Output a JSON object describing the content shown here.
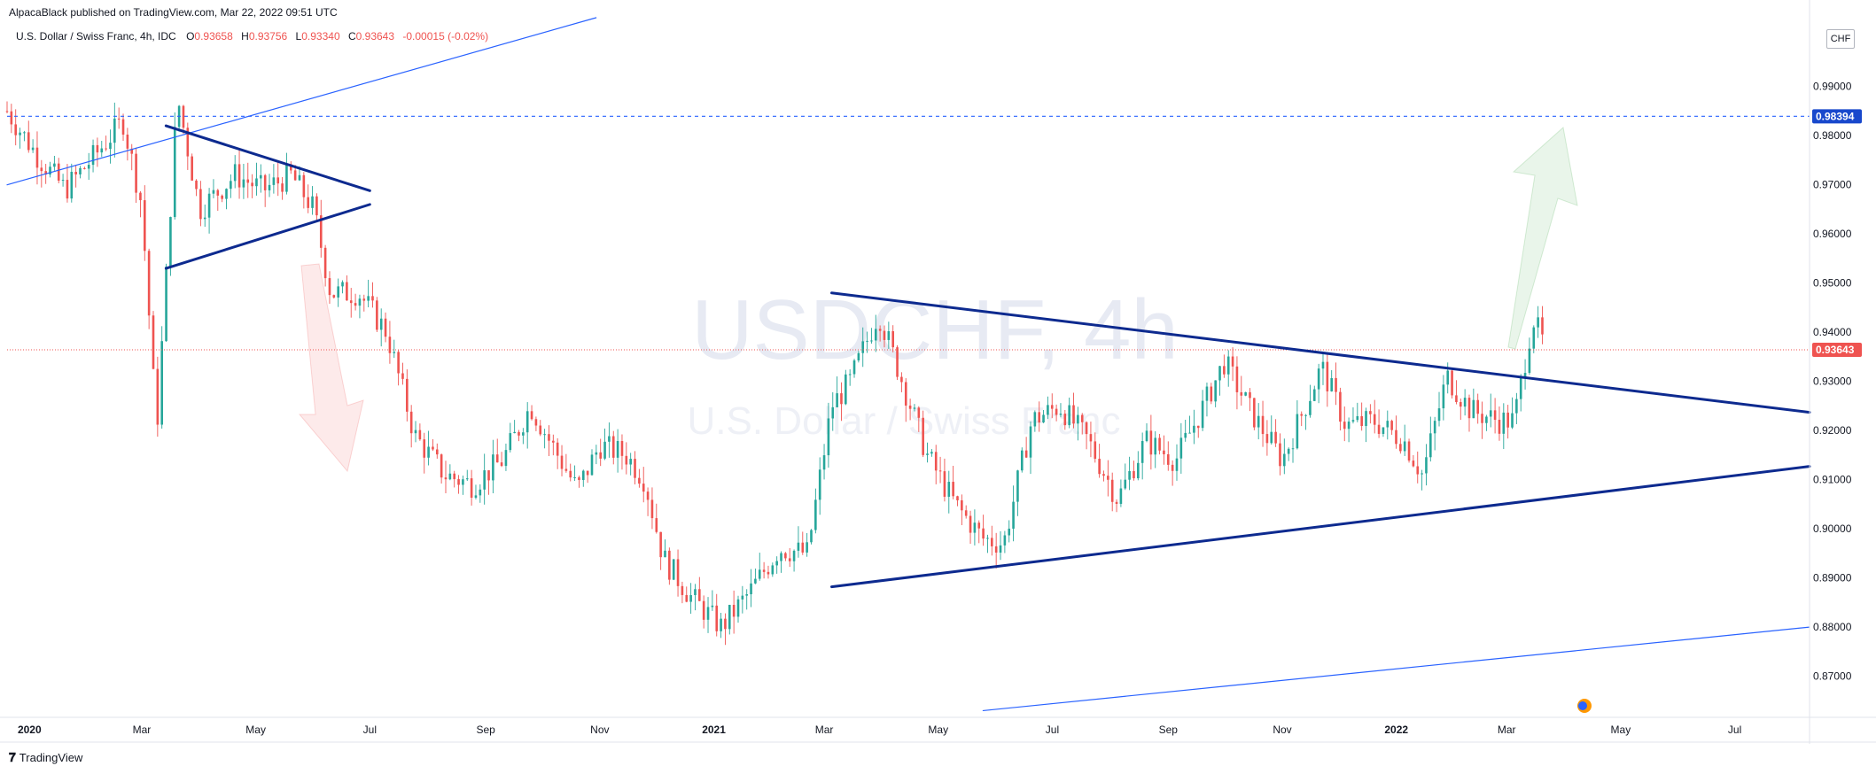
{
  "header": {
    "published": "AlpacaBlack published on TradingView.com, Mar 22, 2022 09:51 UTC"
  },
  "legend": {
    "symbol": "U.S. Dollar / Swiss Franc, 4h, IDC",
    "open_label": "O",
    "open": "0.93658",
    "high_label": "H",
    "high": "0.93756",
    "low_label": "L",
    "low": "0.93340",
    "close_label": "C",
    "close": "0.93643",
    "change": "-0.00015 (-0.02%)"
  },
  "currency_badge": "CHF",
  "watermark": {
    "ticker": "USDCHF, 4h",
    "name": "U.S. Dollar / Swiss Franc"
  },
  "footer": {
    "brand": "TradingView"
  },
  "colors": {
    "up": "#26a69a",
    "down": "#ef5350",
    "trend": "#0d2a8f",
    "thin_trend": "#2962ff",
    "target": "#2962ff",
    "price": "#ef5350"
  },
  "chart_data": {
    "type": "candlestick",
    "symbol": "USDCHF",
    "interval": "4h",
    "y_ticks": [
      "0.99000",
      "0.98000",
      "0.97000",
      "0.96000",
      "0.95000",
      "0.94000",
      "0.93000",
      "0.92000",
      "0.91000",
      "0.90000",
      "0.89000",
      "0.88000",
      "0.87000"
    ],
    "y_range": [
      0.862,
      1.004
    ],
    "x_ticks": [
      {
        "label": "2020",
        "year": true
      },
      {
        "label": "Mar",
        "year": false
      },
      {
        "label": "May",
        "year": false
      },
      {
        "label": "Jul",
        "year": false
      },
      {
        "label": "Sep",
        "year": false
      },
      {
        "label": "Nov",
        "year": false
      },
      {
        "label": "2021",
        "year": true
      },
      {
        "label": "Mar",
        "year": false
      },
      {
        "label": "May",
        "year": false
      },
      {
        "label": "Jul",
        "year": false
      },
      {
        "label": "Sep",
        "year": false
      },
      {
        "label": "Nov",
        "year": false
      },
      {
        "label": "2022",
        "year": true
      },
      {
        "label": "Mar",
        "year": false
      },
      {
        "label": "May",
        "year": false
      },
      {
        "label": "Jul",
        "year": false
      }
    ],
    "x_range": [
      "2019-12-20",
      "2022-08-10"
    ],
    "tick_dates": [
      "2020-01-01",
      "2020-03-01",
      "2020-05-01",
      "2020-07-01",
      "2020-09-01",
      "2020-11-01",
      "2021-01-01",
      "2021-03-01",
      "2021-05-01",
      "2021-07-01",
      "2021-09-01",
      "2021-11-01",
      "2022-01-01",
      "2022-03-01",
      "2022-05-01",
      "2022-07-01"
    ],
    "price_path": [
      [
        "2019-12-20",
        0.985
      ],
      [
        "2020-01-05",
        0.976
      ],
      [
        "2020-01-20",
        0.969
      ],
      [
        "2020-02-05",
        0.976
      ],
      [
        "2020-02-20",
        0.983
      ],
      [
        "2020-03-01",
        0.966
      ],
      [
        "2020-03-09",
        0.92
      ],
      [
        "2020-03-20",
        0.988
      ],
      [
        "2020-04-01",
        0.965
      ],
      [
        "2020-04-20",
        0.972
      ],
      [
        "2020-05-05",
        0.969
      ],
      [
        "2020-05-20",
        0.972
      ],
      [
        "2020-06-01",
        0.965
      ],
      [
        "2020-06-10",
        0.948
      ],
      [
        "2020-06-25",
        0.948
      ],
      [
        "2020-07-10",
        0.94
      ],
      [
        "2020-07-25",
        0.919
      ],
      [
        "2020-08-10",
        0.911
      ],
      [
        "2020-08-25",
        0.909
      ],
      [
        "2020-09-10",
        0.914
      ],
      [
        "2020-09-25",
        0.925
      ],
      [
        "2020-10-05",
        0.918
      ],
      [
        "2020-10-20",
        0.908
      ],
      [
        "2020-11-01",
        0.917
      ],
      [
        "2020-11-15",
        0.915
      ],
      [
        "2020-11-25",
        0.91
      ],
      [
        "2020-12-05",
        0.894
      ],
      [
        "2020-12-20",
        0.886
      ],
      [
        "2021-01-05",
        0.88
      ],
      [
        "2021-01-20",
        0.887
      ],
      [
        "2021-02-05",
        0.896
      ],
      [
        "2021-02-20",
        0.895
      ],
      [
        "2021-03-05",
        0.925
      ],
      [
        "2021-03-15",
        0.93
      ],
      [
        "2021-03-30",
        0.944
      ],
      [
        "2021-04-10",
        0.932
      ],
      [
        "2021-04-25",
        0.915
      ],
      [
        "2021-05-10",
        0.905
      ],
      [
        "2021-05-25",
        0.898
      ],
      [
        "2021-06-05",
        0.897
      ],
      [
        "2021-06-20",
        0.922
      ],
      [
        "2021-07-05",
        0.925
      ],
      [
        "2021-07-20",
        0.918
      ],
      [
        "2021-08-05",
        0.906
      ],
      [
        "2021-08-20",
        0.918
      ],
      [
        "2021-09-05",
        0.914
      ],
      [
        "2021-09-20",
        0.925
      ],
      [
        "2021-10-01",
        0.934
      ],
      [
        "2021-10-15",
        0.924
      ],
      [
        "2021-11-01",
        0.914
      ],
      [
        "2021-11-10",
        0.922
      ],
      [
        "2021-11-22",
        0.933
      ],
      [
        "2021-12-05",
        0.921
      ],
      [
        "2021-12-20",
        0.922
      ],
      [
        "2022-01-05",
        0.918
      ],
      [
        "2022-01-15",
        0.911
      ],
      [
        "2022-01-28",
        0.931
      ],
      [
        "2022-02-10",
        0.924
      ],
      [
        "2022-02-25",
        0.922
      ],
      [
        "2022-03-05",
        0.922
      ],
      [
        "2022-03-15",
        0.943
      ],
      [
        "2022-03-22",
        0.9364
      ]
    ],
    "last_price": "0.93643",
    "target_level": "0.98394",
    "drawings": {
      "upper_trend": [
        [
          "2021-03-05",
          0.948
        ],
        [
          "2022-08-10",
          0.9237
        ]
      ],
      "lower_trend": [
        [
          "2021-03-05",
          0.8882
        ],
        [
          "2022-08-10",
          0.9127
        ]
      ],
      "pennant_upper": [
        [
          "2020-03-14",
          0.982
        ],
        [
          "2020-07-01",
          0.9688
        ]
      ],
      "pennant_lower": [
        [
          "2020-03-14",
          0.953
        ],
        [
          "2020-07-01",
          0.966
        ]
      ],
      "channel_top": [
        [
          "2019-12-20",
          0.97
        ],
        [
          "2020-10-30",
          1.004
        ]
      ],
      "channel_bottom": [
        [
          "2021-05-25",
          0.863
        ],
        [
          "2022-08-10",
          0.88
        ]
      ]
    }
  }
}
